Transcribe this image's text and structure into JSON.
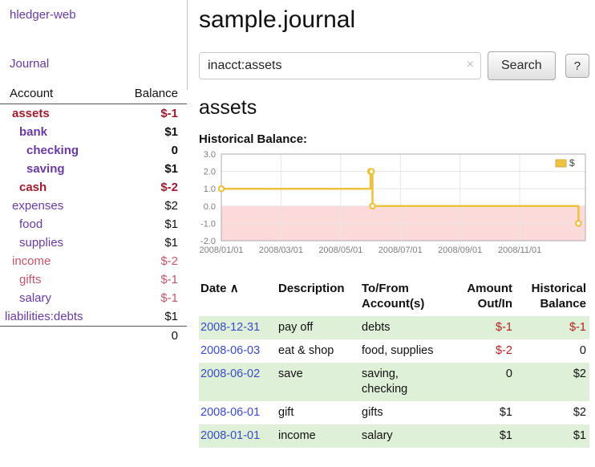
{
  "colors": {
    "link_purple": "#6a3aa0",
    "link_blue": "#3b4bc8",
    "neg_strong": "#9e1b30",
    "neg_soft": "#c2566a",
    "neg_red": "#b22222",
    "row_green": "#dff0d8"
  },
  "app": {
    "title": "hledger-web",
    "nav_journal": "Journal"
  },
  "sidebar": {
    "header": {
      "account": "Account",
      "balance": "Balance"
    },
    "accounts": [
      {
        "name": "assets",
        "balance": "$-1",
        "depth": 1,
        "name_style": "c-negstrong",
        "bal_style": "c-negstrong",
        "bold": true
      },
      {
        "name": "bank",
        "balance": "$1",
        "depth": 2,
        "name_style": "c-purple",
        "bal_style": "c-black",
        "bold": true
      },
      {
        "name": "checking",
        "balance": "0",
        "depth": 3,
        "name_style": "c-purple",
        "bal_style": "c-black",
        "bold": true
      },
      {
        "name": "saving",
        "balance": "$1",
        "depth": 3,
        "name_style": "c-purple",
        "bal_style": "c-black",
        "bold": true
      },
      {
        "name": "cash",
        "balance": "$-2",
        "depth": 2,
        "name_style": "c-negstrong",
        "bal_style": "c-negstrong",
        "bold": true
      },
      {
        "name": "expenses",
        "balance": "$2",
        "depth": 1,
        "name_style": "c-purple",
        "bal_style": "c-black",
        "bold": false
      },
      {
        "name": "food",
        "balance": "$1",
        "depth": 2,
        "name_style": "c-purple",
        "bal_style": "c-black",
        "bold": false
      },
      {
        "name": "supplies",
        "balance": "$1",
        "depth": 2,
        "name_style": "c-purple",
        "bal_style": "c-black",
        "bold": false
      },
      {
        "name": "income",
        "balance": "$-2",
        "depth": 1,
        "name_style": "c-negsoft",
        "bal_style": "c-negsoft",
        "bold": false
      },
      {
        "name": "gifts",
        "balance": "$-1",
        "depth": 2,
        "name_style": "c-negsoft",
        "bal_style": "c-negsoft",
        "bold": false
      },
      {
        "name": "salary",
        "balance": "$-1",
        "depth": 2,
        "name_style": "c-purple",
        "bal_style": "c-negsoft",
        "bold": false
      },
      {
        "name": "liabilities:debts",
        "balance": "$1",
        "depth": 0,
        "name_style": "c-purple",
        "bal_style": "c-black",
        "bold": false
      }
    ],
    "total": "0"
  },
  "main": {
    "title": "sample.journal",
    "search": {
      "value": "inacct:assets",
      "clear_icon": "×",
      "button_label": "Search",
      "help_label": "?"
    },
    "section_title": "assets",
    "chart_label": "Historical Balance:"
  },
  "chart_data": {
    "type": "line",
    "step": true,
    "title": "Historical Balance",
    "ylim": [
      -2.0,
      3.0
    ],
    "yticks": [
      3.0,
      2.0,
      1.0,
      0.0,
      -1.0,
      -2.0
    ],
    "xticks": [
      {
        "label": "2008/01/01",
        "m": 0
      },
      {
        "label": "2008/03/01",
        "m": 2
      },
      {
        "label": "2008/05/01",
        "m": 4
      },
      {
        "label": "2008/07/01",
        "m": 6
      },
      {
        "label": "2008/09/01",
        "m": 8
      },
      {
        "label": "2008/11/01",
        "m": 10
      }
    ],
    "x_domain_months": [
      0,
      12.2
    ],
    "negative_region_color": "#fcdada",
    "legend_position": "top-right",
    "series": [
      {
        "name": "$",
        "color": "#edc240",
        "points": [
          [
            "2008-01-01",
            1
          ],
          [
            "2008-06-01",
            2
          ],
          [
            "2008-06-02",
            2
          ],
          [
            "2008-06-03",
            0
          ],
          [
            "2008-12-31",
            -1
          ]
        ]
      }
    ]
  },
  "register": {
    "headers": {
      "date": "Date",
      "sort_icon": "∧",
      "description": "Description",
      "accounts": "To/From Account(s)",
      "amount": "Amount Out/In",
      "balance": "Historical Balance"
    },
    "rows": [
      {
        "date": "2008-12-31",
        "description": "pay off",
        "accounts": "debts",
        "amount": "$-1",
        "amount_negative": true,
        "balance": "$-1",
        "balance_negative": true,
        "shaded": true
      },
      {
        "date": "2008-06-03",
        "description": "eat & shop",
        "accounts": "food, supplies",
        "amount": "$-2",
        "amount_negative": true,
        "balance": "0",
        "balance_negative": false,
        "shaded": false
      },
      {
        "date": "2008-06-02",
        "description": "save",
        "accounts": "saving, checking",
        "amount": "0",
        "amount_negative": false,
        "balance": "$2",
        "balance_negative": false,
        "shaded": true
      },
      {
        "date": "2008-06-01",
        "description": "gift",
        "accounts": "gifts",
        "amount": "$1",
        "amount_negative": false,
        "balance": "$2",
        "balance_negative": false,
        "shaded": false
      },
      {
        "date": "2008-01-01",
        "description": "income",
        "accounts": "salary",
        "amount": "$1",
        "amount_negative": false,
        "balance": "$1",
        "balance_negative": false,
        "shaded": true
      }
    ]
  }
}
